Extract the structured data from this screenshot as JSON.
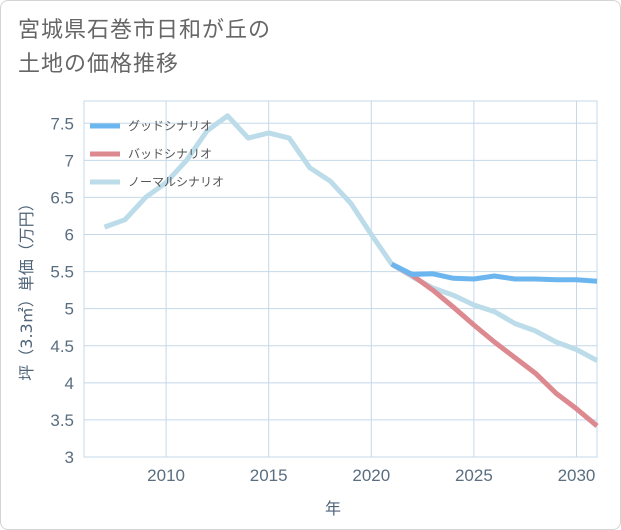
{
  "title": {
    "line1": "宮城県石巻市日和が丘の",
    "line2": "土地の価格推移"
  },
  "colors": {
    "good": "#6cb6ef",
    "bad": "#dd8990",
    "normal": "#bcdcea",
    "grid": "#c5d8ea",
    "axis_text": "#5a6e80"
  },
  "chart_data": {
    "type": "line",
    "title": "宮城県石巻市日和が丘の土地の価格推移",
    "xlabel": "年",
    "ylabel": "坪（3.3㎡）単価（万円）",
    "xlim": [
      2006,
      2031
    ],
    "ylim": [
      3,
      7.8
    ],
    "x_ticks": [
      2010,
      2015,
      2020,
      2025,
      2030
    ],
    "y_ticks": [
      3,
      3.5,
      4,
      4.5,
      5,
      5.5,
      6,
      6.5,
      7,
      7.5
    ],
    "y_tick_labels": [
      "3",
      "3.5",
      "4",
      "4.5",
      "5",
      "5.5",
      "6",
      "6.5",
      "7",
      "7.5"
    ],
    "legend_position": "top-left",
    "series": [
      {
        "name": "グッドシナリオ",
        "key": "good",
        "x": [
          2021,
          2022,
          2023,
          2024,
          2025,
          2026,
          2027,
          2028,
          2029,
          2030,
          2031
        ],
        "values": [
          5.6,
          5.46,
          5.47,
          5.41,
          5.4,
          5.44,
          5.4,
          5.4,
          5.39,
          5.39,
          5.37
        ]
      },
      {
        "name": "バッドシナリオ",
        "key": "bad",
        "x": [
          2021,
          2022,
          2023,
          2024,
          2025,
          2026,
          2027,
          2028,
          2029,
          2030,
          2031
        ],
        "values": [
          5.6,
          5.45,
          5.25,
          5.02,
          4.78,
          4.55,
          4.34,
          4.13,
          3.86,
          3.65,
          3.42
        ]
      },
      {
        "name": "ノーマルシナリオ",
        "key": "normal",
        "x": [
          2007,
          2008,
          2009,
          2010,
          2011,
          2012,
          2013,
          2014,
          2015,
          2016,
          2017,
          2018,
          2019,
          2020,
          2021,
          2022,
          2023,
          2024,
          2025,
          2026,
          2027,
          2028,
          2029,
          2030,
          2031
        ],
        "values": [
          6.1,
          6.2,
          6.5,
          6.7,
          7.0,
          7.4,
          7.6,
          7.3,
          7.37,
          7.3,
          6.9,
          6.72,
          6.42,
          6.0,
          5.6,
          5.43,
          5.28,
          5.18,
          5.05,
          4.96,
          4.8,
          4.7,
          4.55,
          4.45,
          4.3
        ]
      }
    ]
  }
}
